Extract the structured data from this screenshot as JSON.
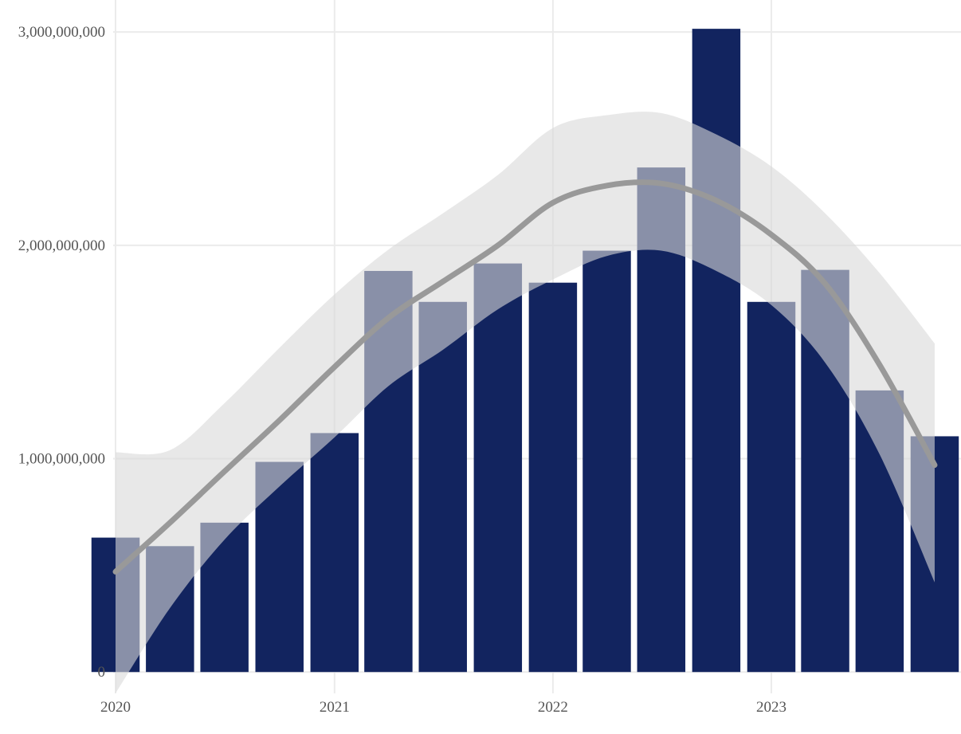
{
  "chart_data": {
    "type": "bar",
    "title": "",
    "xlabel": "",
    "ylabel": "",
    "x_axis": {
      "type": "date",
      "range": [
        "2019-12-28",
        "2023-11-14"
      ],
      "ticks": [
        {
          "value": "2020-01-01",
          "label": "2020"
        },
        {
          "value": "2021-01-01",
          "label": "2021"
        },
        {
          "value": "2022-01-01",
          "label": "2022"
        },
        {
          "value": "2023-01-01",
          "label": "2023"
        }
      ]
    },
    "y_axis": {
      "range": [
        -100000000,
        3150000000
      ],
      "ticks": [
        {
          "value": 0,
          "label": "0"
        },
        {
          "value": 1000000000,
          "label": "1,000,000,000"
        },
        {
          "value": 2000000000,
          "label": "2,000,000,000"
        },
        {
          "value": 3000000000,
          "label": "3,000,000,000"
        }
      ]
    },
    "grid": true,
    "bars": {
      "color": "#12245f",
      "x": [
        "2020-01",
        "2020-04",
        "2020-07",
        "2020-10",
        "2021-01",
        "2021-04",
        "2021-07",
        "2021-10",
        "2022-01",
        "2022-04",
        "2022-07",
        "2022-10",
        "2023-01",
        "2023-04",
        "2023-07",
        "2023-10"
      ],
      "values": [
        630000000,
        590000000,
        700000000,
        985000000,
        1120000000,
        1880000000,
        1735000000,
        1915000000,
        1825000000,
        1975000000,
        2365000000,
        3015000000,
        1735000000,
        1885000000,
        1320000000,
        1105000000
      ]
    },
    "smooth": {
      "line_color": "#999999",
      "band_color": "#d9d9d9",
      "x": [
        "2020-01",
        "2020-04",
        "2020-07",
        "2020-10",
        "2021-01",
        "2021-04",
        "2021-07",
        "2021-10",
        "2022-01",
        "2022-04",
        "2022-07",
        "2022-10",
        "2023-01",
        "2023-04",
        "2023-07",
        "2023-10"
      ],
      "fit": [
        470000000,
        700000000,
        940000000,
        1180000000,
        1430000000,
        1660000000,
        1830000000,
        2000000000,
        2200000000,
        2280000000,
        2290000000,
        2210000000,
        2050000000,
        1820000000,
        1440000000,
        970000000
      ],
      "lower": [
        -100000000,
        300000000,
        620000000,
        870000000,
        1100000000,
        1340000000,
        1510000000,
        1700000000,
        1840000000,
        1950000000,
        1975000000,
        1880000000,
        1720000000,
        1450000000,
        1020000000,
        420000000
      ],
      "upper": [
        1030000000,
        1040000000,
        1260000000,
        1520000000,
        1770000000,
        1980000000,
        2150000000,
        2330000000,
        2550000000,
        2610000000,
        2620000000,
        2520000000,
        2370000000,
        2150000000,
        1870000000,
        1540000000
      ]
    }
  }
}
